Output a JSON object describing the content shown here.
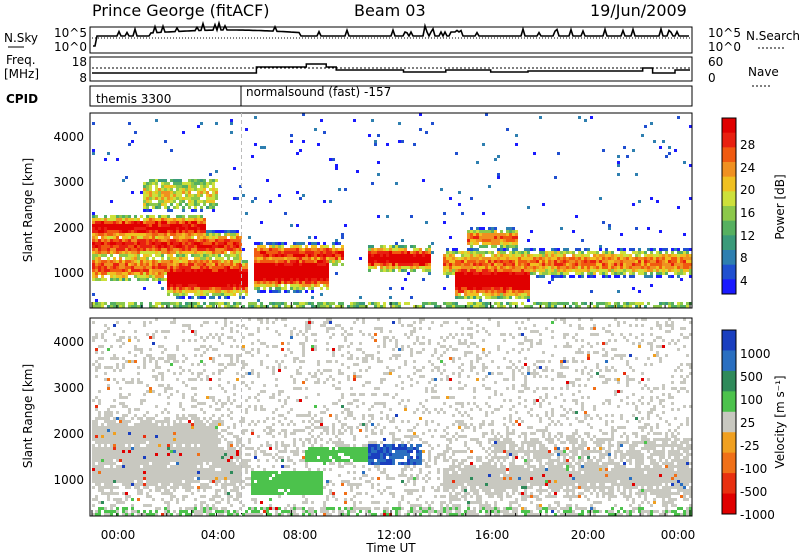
{
  "header": {
    "station": "Prince George (fitACF)",
    "beam": "Beam 03",
    "date": "19/Jun/2009"
  },
  "side_labels": {
    "nsky": "N.Sky",
    "nsearch": "N.Search",
    "freq_line1": "Freq.",
    "freq_line2": "[MHz]",
    "nave": "Nave",
    "cpid": "CPID"
  },
  "noise_panel": {
    "left_ticks": [
      "10^5",
      "10^0"
    ],
    "right_ticks": [
      "10^5",
      "10^0"
    ]
  },
  "freq_panel": {
    "left_ticks": [
      "18",
      "8"
    ],
    "right_ticks": [
      "60",
      "0"
    ]
  },
  "cpid_panel": {
    "segments": [
      {
        "start_hour": 0.0,
        "label": "themis 3300"
      },
      {
        "start_hour": 6.0,
        "label": "normalsound (fast) -157"
      }
    ]
  },
  "chart_data": [
    {
      "type": "heatmap",
      "panel": "power",
      "ylabel": "Slant Range [km]",
      "xlabel": "",
      "yticks": [
        "1000",
        "2000",
        "3000",
        "4000"
      ],
      "ylim": [
        200,
        4600
      ],
      "xlim_hours": [
        0,
        24
      ],
      "colorbar_label": "Power [dB]",
      "colorbar_ticks": [
        "28",
        "24",
        "20",
        "16",
        "12",
        "8",
        "4"
      ],
      "colorscale": [
        "#1a1aff",
        "#2050d0",
        "#2e7fb0",
        "#3a9a7a",
        "#56b060",
        "#8cc84a",
        "#cde03a",
        "#f0c020",
        "#f09020",
        "#f05a10",
        "#e82010",
        "#e00000"
      ]
    },
    {
      "type": "heatmap",
      "panel": "velocity",
      "ylabel": "Slant Range [km]",
      "xlabel": "Time UT",
      "yticks": [
        "1000",
        "2000",
        "3000",
        "4000"
      ],
      "xticks": [
        "00:00",
        "04:00",
        "08:00",
        "12:00",
        "16:00",
        "20:00",
        "00:00"
      ],
      "ylim": [
        200,
        4600
      ],
      "xlim_hours": [
        0,
        24
      ],
      "colorbar_label": "Velocity [m s⁻¹]",
      "colorbar_ticks": [
        "1000",
        "500",
        "100",
        "25",
        "-25",
        "-100",
        "-500",
        "-1000"
      ],
      "colorscale": [
        "#1a3fbf",
        "#2a6fc0",
        "#2f8a5a",
        "#4cc24c",
        "#c8c8c0",
        "#f0a020",
        "#f07018",
        "#e83010",
        "#e00000"
      ]
    }
  ]
}
